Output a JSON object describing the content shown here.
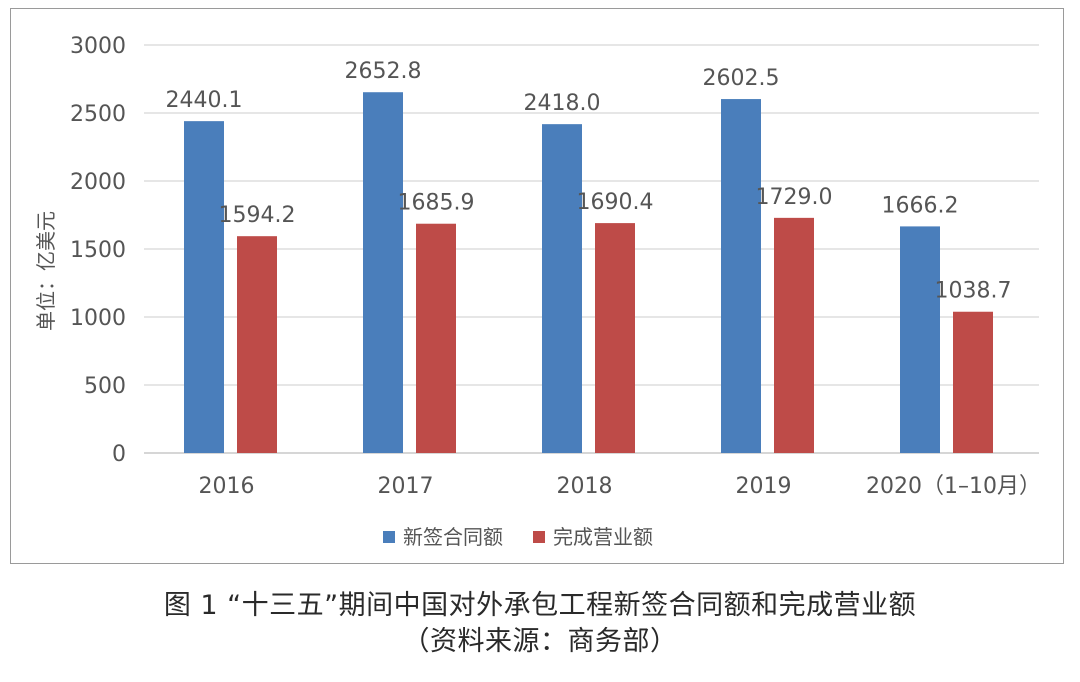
{
  "chart_data": {
    "type": "bar",
    "ylabel": "单位：亿美元",
    "ylim": [
      0,
      3000
    ],
    "yticks": [
      0,
      500,
      1000,
      1500,
      2000,
      2500,
      3000
    ],
    "categories": [
      "2016",
      "2017",
      "2018",
      "2019",
      "2020（1–10月）"
    ],
    "series": [
      {
        "name": "新签合同额",
        "color": "#4a7ebb",
        "values": [
          2440.1,
          2652.8,
          2418.0,
          2602.5,
          1666.2
        ]
      },
      {
        "name": "完成营业额",
        "color": "#be4b48",
        "values": [
          1594.2,
          1685.9,
          1690.4,
          1729.0,
          1038.7
        ]
      }
    ],
    "grid": true,
    "legend_position": "bottom",
    "data_labels": [
      "2440.1",
      "2652.8",
      "2418.0",
      "2602.5",
      "1666.2",
      "1594.2",
      "1685.9",
      "1690.4",
      "1729.0",
      "1038.7"
    ]
  },
  "caption": {
    "line1": "图 1 “十三五”期间中国对外承包工程新签合同额和完成营业额",
    "line2": "（资料来源：商务部）"
  }
}
